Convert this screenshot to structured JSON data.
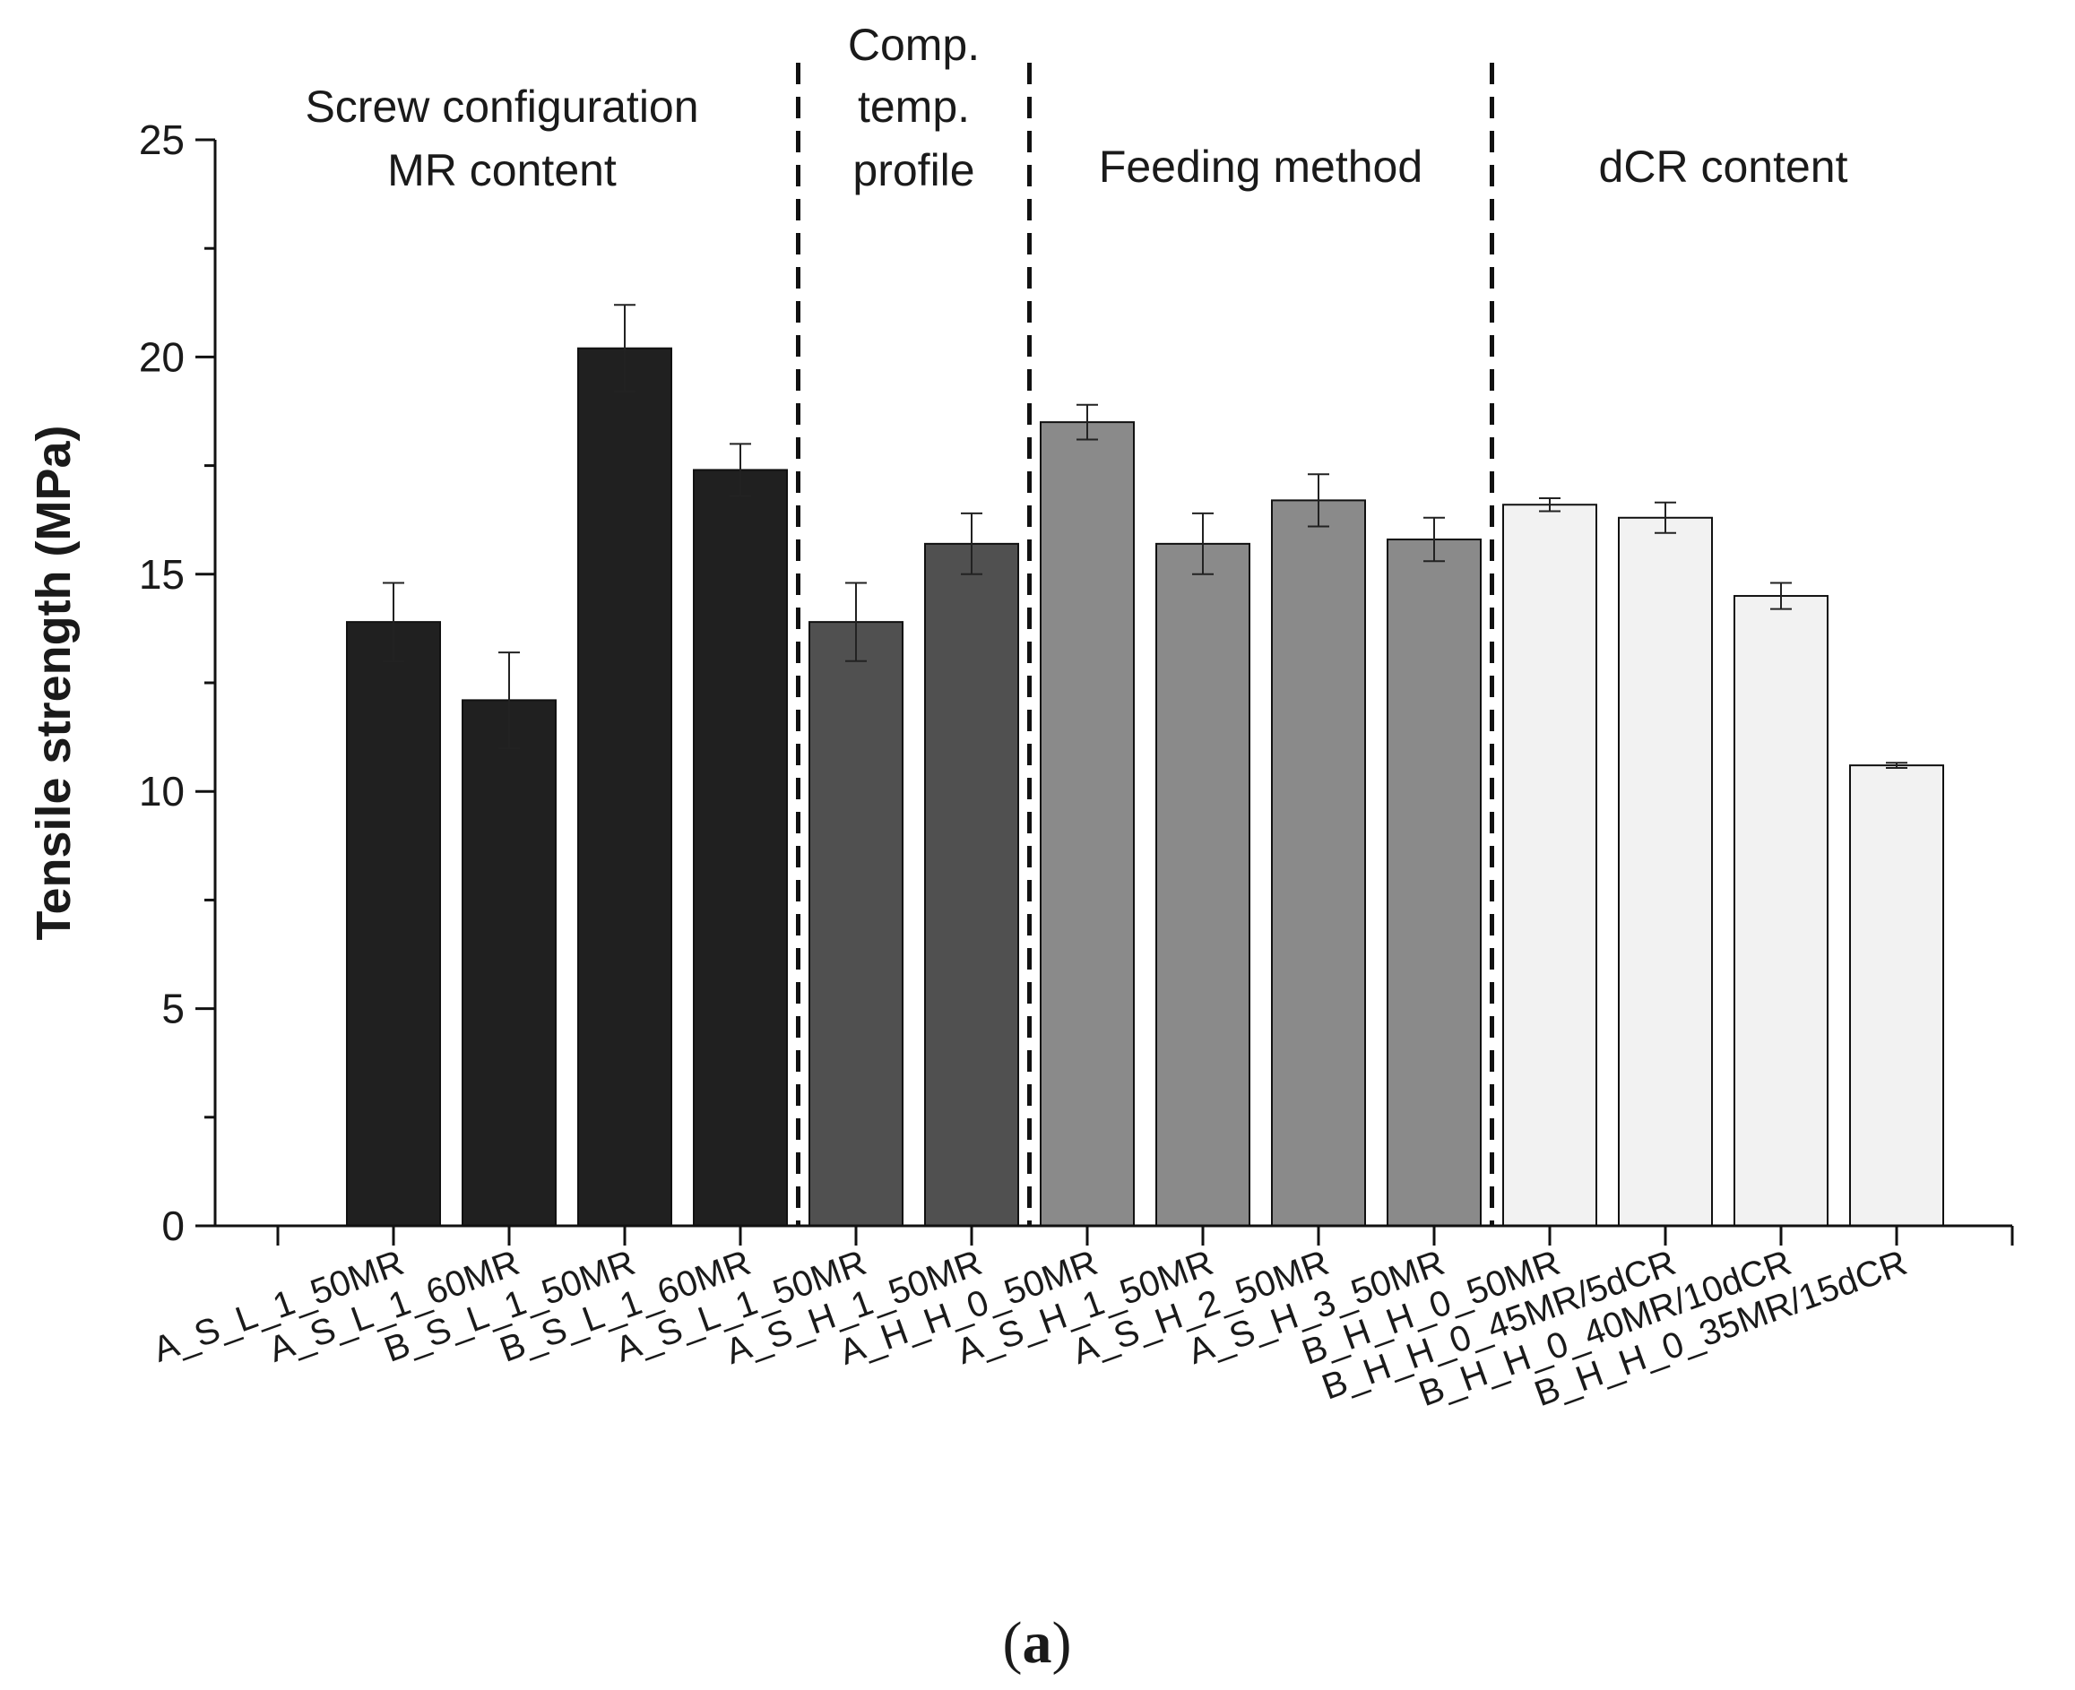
{
  "chart_data": {
    "type": "bar",
    "ylabel": "Tensile strength (MPa)",
    "xlabel": "",
    "ylim": [
      0,
      25
    ],
    "yticks": [
      0,
      5,
      10,
      15,
      20,
      25
    ],
    "grid": false,
    "legend": "none",
    "categories": [
      "A_S_L_1_50MR",
      "A_S_L_1_60MR",
      "B_S_L_1_50MR",
      "B_S_L_1_60MR",
      "A_S_L_1_50MR",
      "A_S_H_1_50MR",
      "A_H_H_0_50MR",
      "A_S_H_1_50MR",
      "A_S_H_2_50MR",
      "A_S_H_3_50MR",
      "B_H_H_0_50MR",
      "B_H_H_0_45MR/5dCR",
      "B_H_H_0_40MR/10dCR",
      "B_H_H_0_35MR/15dCR"
    ],
    "values": [
      13.9,
      12.1,
      20.2,
      17.4,
      13.9,
      15.7,
      18.5,
      15.7,
      16.7,
      15.8,
      16.6,
      16.3,
      14.5,
      10.6
    ],
    "errors": [
      0.9,
      1.1,
      1.0,
      0.6,
      0.9,
      0.7,
      0.4,
      0.7,
      0.6,
      0.5,
      0.15,
      0.35,
      0.3,
      0.06
    ],
    "groups": [
      {
        "label_lines": [
          "Screw configuration",
          "MR content"
        ],
        "start": 0,
        "end": 3,
        "color": "#202020"
      },
      {
        "label_lines": [
          "Comp.",
          "temp.",
          "profile"
        ],
        "start": 4,
        "end": 5,
        "color": "#505050"
      },
      {
        "label_lines": [
          "Feeding method"
        ],
        "start": 6,
        "end": 9,
        "color": "#8a8a8a"
      },
      {
        "label_lines": [
          "dCR content"
        ],
        "start": 10,
        "end": 13,
        "color": "#f2f2f2"
      }
    ]
  },
  "caption": {
    "open": "(",
    "letter": "a",
    "close": ")"
  }
}
